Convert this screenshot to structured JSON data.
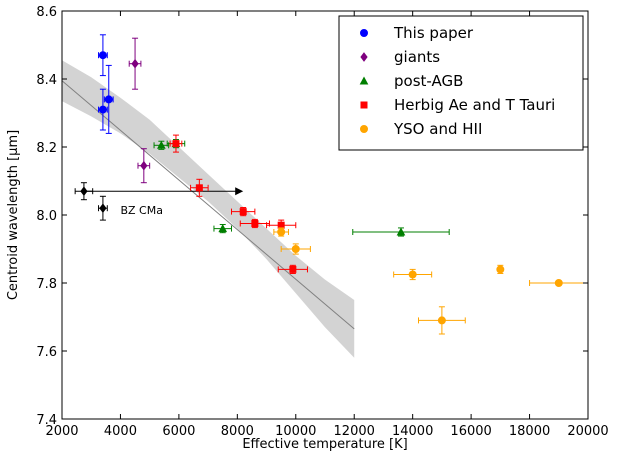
{
  "chart_data": {
    "type": "scatter",
    "xlabel": "Effective temperature [K]",
    "ylabel": "Centroid wavelength [μm]",
    "xlim": [
      2000,
      20000
    ],
    "ylim": [
      7.4,
      8.6
    ],
    "xticks": [
      "2000",
      "4000",
      "6000",
      "8000",
      "10000",
      "12000",
      "14000",
      "16000",
      "18000",
      "20000"
    ],
    "yticks": [
      "7.4",
      "7.6",
      "7.8",
      "8.0",
      "8.2",
      "8.4",
      "8.6"
    ],
    "grid": false,
    "legend_position": "top-right",
    "series": [
      {
        "name": "This paper",
        "color": "#0000ff",
        "marker": "circle",
        "points": [
          {
            "x": 3400,
            "y": 8.47,
            "xerr": 150,
            "yerr": 0.06
          },
          {
            "x": 3400,
            "y": 8.31,
            "xerr": 150,
            "yerr": 0.06
          },
          {
            "x": 3600,
            "y": 8.34,
            "xerr": 150,
            "yerr": 0.1
          }
        ]
      },
      {
        "name": "giants",
        "color": "#7f007f",
        "marker": "diamond",
        "points": [
          {
            "x": 4500,
            "y": 8.445,
            "xerr": 200,
            "yerr": 0.075
          },
          {
            "x": 4800,
            "y": 8.145,
            "xerr": 200,
            "yerr": 0.05
          }
        ]
      },
      {
        "name": "post-AGB",
        "color": "#007f00",
        "marker": "triangle",
        "points": [
          {
            "x": 5400,
            "y": 8.205,
            "xerr": 250,
            "yerr": 0.012
          },
          {
            "x": 5900,
            "y": 8.21,
            "xerr": 300,
            "yerr": 0.012
          },
          {
            "x": 7500,
            "y": 7.96,
            "xerr": 300,
            "yerr": 0.012
          },
          {
            "x": 13600,
            "y": 7.95,
            "xerr": 1650,
            "yerr": 0.012
          }
        ]
      },
      {
        "name": "Herbig Ae and T Tauri",
        "color": "#ff0000",
        "marker": "square",
        "points": [
          {
            "x": 5900,
            "y": 8.21,
            "xerr": 200,
            "yerr": 0.025
          },
          {
            "x": 6700,
            "y": 8.08,
            "xerr": 300,
            "yerr": 0.025
          },
          {
            "x": 8200,
            "y": 8.01,
            "xerr": 400,
            "yerr": 0.012
          },
          {
            "x": 8600,
            "y": 7.975,
            "xerr": 500,
            "yerr": 0.012
          },
          {
            "x": 9500,
            "y": 7.97,
            "xerr": 500,
            "yerr": 0.015
          },
          {
            "x": 9900,
            "y": 7.84,
            "xerr": 500,
            "yerr": 0.012
          }
        ]
      },
      {
        "name": "YSO and HII",
        "color": "#ffa500",
        "marker": "circle",
        "points": [
          {
            "x": 9500,
            "y": 7.95,
            "xerr": 250,
            "yerr": 0.012
          },
          {
            "x": 10000,
            "y": 7.9,
            "xerr": 500,
            "yerr": 0.015
          },
          {
            "x": 14000,
            "y": 7.825,
            "xerr": 650,
            "yerr": 0.015
          },
          {
            "x": 15000,
            "y": 7.69,
            "xerr": 800,
            "yerr": 0.04
          },
          {
            "x": 17000,
            "y": 7.84,
            "xerr": 50,
            "yerr": 0.012
          },
          {
            "x": 19000,
            "y": 7.8,
            "xerr": 1000,
            "yerr": 0.005
          }
        ]
      },
      {
        "name": "",
        "color": "#000000",
        "marker": "diamond",
        "points": [
          {
            "x": 2750,
            "y": 8.07,
            "xerr": 300,
            "yerr": 0.025
          },
          {
            "x": 3400,
            "y": 8.02,
            "xerr": 150,
            "yerr": 0.035
          }
        ]
      }
    ],
    "fit": {
      "line": [
        [
          2000,
          8.395
        ],
        [
          12000,
          7.665
        ]
      ],
      "band_upper": [
        [
          2000,
          8.455
        ],
        [
          3000,
          8.405
        ],
        [
          4000,
          8.345
        ],
        [
          5000,
          8.28
        ],
        [
          6000,
          8.2
        ],
        [
          7000,
          8.12
        ],
        [
          8000,
          8.04
        ],
        [
          9000,
          7.96
        ],
        [
          10000,
          7.88
        ],
        [
          11000,
          7.81
        ],
        [
          12000,
          7.75
        ]
      ],
      "band_lower": [
        [
          2000,
          8.335
        ],
        [
          3000,
          8.29
        ],
        [
          4000,
          8.24
        ],
        [
          5000,
          8.18
        ],
        [
          6000,
          8.11
        ],
        [
          7000,
          8.04
        ],
        [
          8000,
          7.96
        ],
        [
          9000,
          7.87
        ],
        [
          10000,
          7.77
        ],
        [
          11000,
          7.67
        ],
        [
          12000,
          7.58
        ]
      ],
      "line_color": "#808080",
      "band_color": "#d3d3d3"
    },
    "arrow": {
      "x_start": 2700,
      "x_end": 8200,
      "y": 8.07,
      "color": "#000000"
    },
    "annotations": [
      {
        "text": "BZ CMa",
        "x": 4000,
        "y": 8.02
      }
    ]
  }
}
